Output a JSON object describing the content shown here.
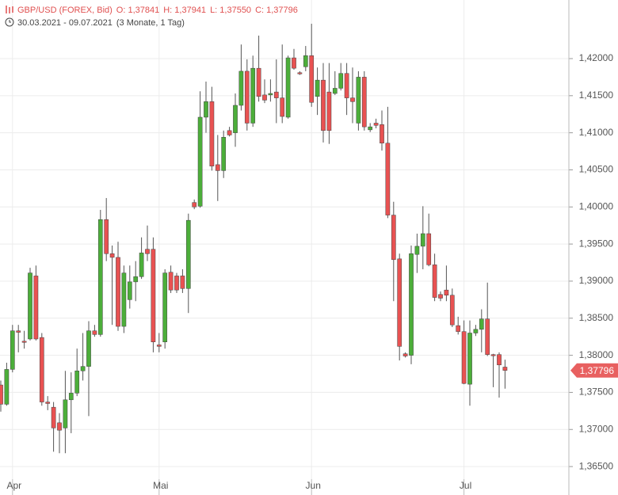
{
  "header": {
    "symbol": "GBP/USD (FOREX, Bid)",
    "open": "O: 1,37841",
    "high": "H: 1,37941",
    "low": "L: 1,37550",
    "close": "C: 1,37796",
    "range": "30.03.2021 - 09.07.2021",
    "period": "(3 Monate, 1 Tag)"
  },
  "chart_data": {
    "type": "candlestick",
    "categories": [
      null,
      null,
      "Apr",
      null,
      null,
      null,
      null,
      null,
      null,
      null,
      null,
      null,
      null,
      null,
      null,
      null,
      null,
      null,
      null,
      null,
      null,
      null,
      null,
      null,
      null,
      null,
      null,
      "Mai",
      null,
      null,
      null,
      null,
      null,
      null,
      null,
      null,
      null,
      null,
      null,
      null,
      null,
      null,
      null,
      null,
      null,
      null,
      null,
      null,
      null,
      null,
      null,
      null,
      null,
      "Jun",
      null,
      null,
      null,
      null,
      null,
      null,
      null,
      null,
      null,
      null,
      null,
      null,
      null,
      null,
      null,
      null,
      null,
      null,
      null,
      null,
      null,
      null,
      null,
      null,
      null,
      "Jul",
      null,
      null,
      null,
      null,
      null,
      null,
      null
    ],
    "open": [
      1.376,
      1.3734,
      1.3781,
      1.3833,
      1.3819,
      1.3822,
      1.3907,
      1.3824,
      1.3737,
      1.373,
      1.3709,
      1.3702,
      1.374,
      1.3749,
      1.3779,
      1.3785,
      1.3833,
      1.3828,
      1.3983,
      1.3937,
      1.3932,
      1.3839,
      1.3875,
      1.3899,
      1.3906,
      1.3943,
      1.3943,
      1.3814,
      1.3818,
      1.3912,
      1.3907,
      1.3907,
      1.389,
      1.4006,
      1.4001,
      1.4121,
      1.4142,
      1.4057,
      1.4049,
      1.4103,
      1.41,
      1.4137,
      1.4183,
      1.4113,
      1.4187,
      1.4151,
      1.4151,
      1.4155,
      1.4147,
      1.4121,
      1.4201,
      1.4181,
      1.4189,
      1.4204,
      1.4149,
      1.4171,
      1.4155,
      1.4153,
      1.416,
      1.418,
      1.4147,
      1.4113,
      1.4175,
      1.4104,
      1.4113,
      1.4111,
      1.4086,
      1.3989,
      1.393,
      1.3802,
      1.38,
      1.3936,
      1.3947,
      1.3964,
      1.3922,
      1.3882,
      1.3888,
      1.3881,
      1.384,
      1.3832,
      1.3761,
      1.383,
      1.3835,
      1.3849,
      1.3801,
      1.3801,
      1.37841
    ],
    "high": [
      1.3766,
      1.379,
      1.3841,
      1.3841,
      1.3833,
      1.3918,
      1.3921,
      1.383,
      1.3745,
      1.3737,
      1.3722,
      1.3779,
      1.3777,
      1.3809,
      1.383,
      1.3846,
      1.3841,
      1.3996,
      1.4012,
      1.3948,
      1.3953,
      1.3921,
      1.3921,
      1.3927,
      1.3959,
      1.3975,
      1.3959,
      1.383,
      1.3916,
      1.3921,
      1.3911,
      1.3916,
      1.3991,
      1.401,
      1.4156,
      1.4169,
      1.4162,
      1.4097,
      1.4103,
      1.4108,
      1.4153,
      1.4219,
      1.4199,
      1.4204,
      1.4231,
      1.4172,
      1.4172,
      1.4199,
      1.4219,
      1.4204,
      1.4213,
      1.4183,
      1.4217,
      1.4247,
      1.4188,
      1.4194,
      1.4194,
      1.4183,
      1.4194,
      1.4194,
      1.4188,
      1.4183,
      1.4183,
      1.4113,
      1.4119,
      1.413,
      1.4135,
      1.4007,
      1.3937,
      1.3804,
      1.3948,
      1.3964,
      1.4001,
      1.3991,
      1.3937,
      1.3886,
      1.3921,
      1.389,
      1.3852,
      1.3847,
      1.3847,
      1.3841,
      1.3862,
      1.3898,
      1.3802,
      1.3804,
      1.37941
    ],
    "low": [
      1.3724,
      1.3732,
      1.3777,
      1.3804,
      1.3809,
      1.382,
      1.382,
      1.3732,
      1.3726,
      1.367,
      1.3668,
      1.3668,
      1.3695,
      1.3745,
      1.3766,
      1.3718,
      1.3825,
      1.3825,
      1.3927,
      1.3841,
      1.3833,
      1.383,
      1.3863,
      1.3873,
      1.3903,
      1.3927,
      1.3804,
      1.3804,
      1.3809,
      1.3884,
      1.3884,
      1.3884,
      1.3857,
      1.3997,
      1.3999,
      1.41,
      1.4049,
      1.4008,
      1.4039,
      1.4095,
      1.4081,
      1.413,
      1.4103,
      1.4108,
      1.4142,
      1.414,
      1.4142,
      1.4113,
      1.4113,
      1.4119,
      1.4185,
      1.4178,
      1.4183,
      1.4135,
      1.4124,
      1.4087,
      1.4085,
      1.4151,
      1.4157,
      1.4124,
      1.4113,
      1.4103,
      1.4103,
      1.4101,
      1.4106,
      1.4076,
      1.3985,
      1.3873,
      1.3793,
      1.3797,
      1.3788,
      1.3911,
      1.3916,
      1.392,
      1.3873,
      1.3873,
      1.3873,
      1.3838,
      1.3828,
      1.3761,
      1.3732,
      1.3826,
      1.3804,
      1.3799,
      1.3757,
      1.3743,
      1.3755
    ],
    "close": [
      1.3734,
      1.3781,
      1.3833,
      1.3831,
      1.3818,
      1.3911,
      1.3822,
      1.3737,
      1.3735,
      1.3702,
      1.3699,
      1.374,
      1.3749,
      1.3779,
      1.3785,
      1.3833,
      1.3828,
      1.3983,
      1.3937,
      1.3932,
      1.3839,
      1.3911,
      1.3899,
      1.3906,
      1.3938,
      1.3937,
      1.3818,
      1.3812,
      1.3911,
      1.3888,
      1.3888,
      1.389,
      1.3982,
      1.4,
      1.4121,
      1.4142,
      1.4055,
      1.4049,
      1.4094,
      1.4097,
      1.4137,
      1.4183,
      1.4113,
      1.4187,
      1.4149,
      1.4144,
      1.4153,
      1.4147,
      1.4122,
      1.4201,
      1.4187,
      1.418,
      1.4204,
      1.4141,
      1.4171,
      1.4103,
      1.4103,
      1.416,
      1.418,
      1.4147,
      1.4142,
      1.4175,
      1.4108,
      1.4108,
      1.411,
      1.4086,
      1.3989,
      1.3929,
      1.3812,
      1.3799,
      1.3937,
      1.3947,
      1.3964,
      1.3922,
      1.3878,
      1.3877,
      1.3881,
      1.3841,
      1.3832,
      1.3762,
      1.383,
      1.3835,
      1.3849,
      1.3801,
      1.38,
      1.3787,
      1.37796
    ],
    "up_color": "#4cae3a",
    "down_color": "#e85252",
    "ylim": [
      1.3633,
      1.4279
    ],
    "yticks": [
      {
        "value": 1.365,
        "label": "1,36500"
      },
      {
        "value": 1.37,
        "label": "1,37000"
      },
      {
        "value": 1.375,
        "label": "1,37500"
      },
      {
        "value": 1.38,
        "label": "1,38000"
      },
      {
        "value": 1.385,
        "label": "1,38500"
      },
      {
        "value": 1.39,
        "label": "1,39000"
      },
      {
        "value": 1.395,
        "label": "1,39500"
      },
      {
        "value": 1.4,
        "label": "1,40000"
      },
      {
        "value": 1.405,
        "label": "1,40500"
      },
      {
        "value": 1.41,
        "label": "1,41000"
      },
      {
        "value": 1.415,
        "label": "1,41500"
      },
      {
        "value": 1.42,
        "label": "1,42000"
      }
    ],
    "grid": true,
    "last_price": {
      "value": 1.37796,
      "label": "1,37796"
    }
  }
}
